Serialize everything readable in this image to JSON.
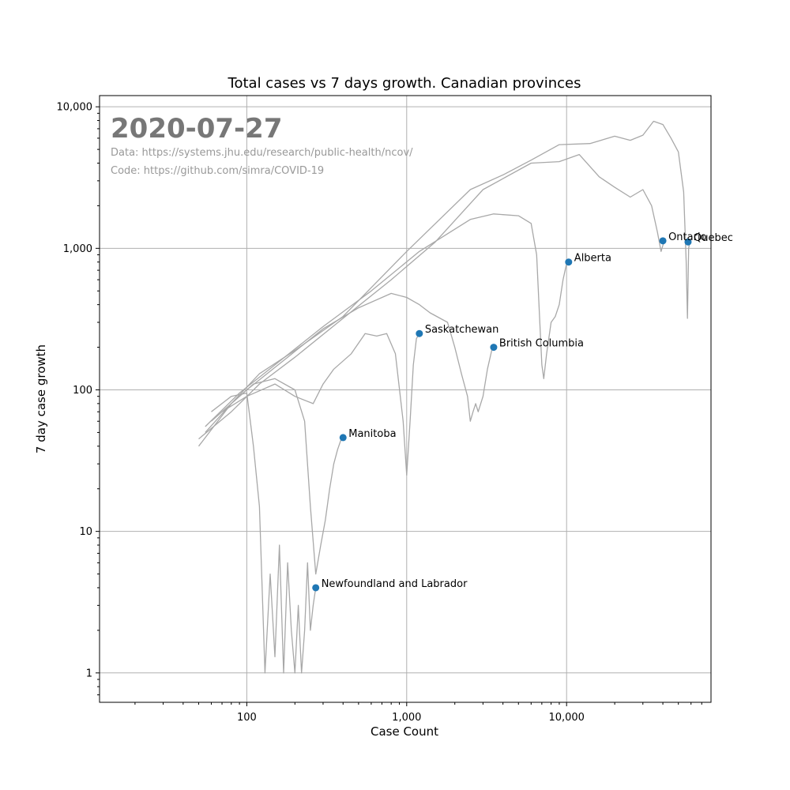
{
  "chart_data": {
    "type": "line",
    "title": "Total cases vs 7 days growth. Canadian provinces",
    "xlabel": "Case Count",
    "ylabel": "7 day case growth",
    "xscale": "log",
    "yscale": "log",
    "xlim": [
      12,
      80000
    ],
    "ylim": [
      0.62,
      12000
    ],
    "grid": true,
    "x_ticks": [
      {
        "value": 100,
        "label": "100"
      },
      {
        "value": 1000,
        "label": "1,000"
      },
      {
        "value": 10000,
        "label": "10,000"
      }
    ],
    "y_ticks": [
      {
        "value": 1,
        "label": "1"
      },
      {
        "value": 10,
        "label": "10"
      },
      {
        "value": 100,
        "label": "100"
      },
      {
        "value": 1000,
        "label": "1,000"
      },
      {
        "value": 10000,
        "label": "10,000"
      }
    ],
    "annotations": {
      "date": "2020-07-27",
      "data_source": "Data: https://systems.jhu.edu/research/public-health/ncov/",
      "code_source": "Code: https://github.com/simra/COVID-19"
    },
    "series": [
      {
        "name": "Quebec",
        "color": "#a8a8a8",
        "x": [
          50,
          80,
          120,
          200,
          400,
          1000,
          2500,
          4000,
          6000,
          9000,
          14000,
          20000,
          25000,
          30000,
          35000,
          40000,
          45000,
          50000,
          54000,
          56000,
          57000,
          58000,
          59000
        ],
        "y": [
          40,
          80,
          130,
          190,
          330,
          950,
          2600,
          3300,
          4200,
          5400,
          5500,
          6200,
          5800,
          6300,
          7900,
          7500,
          6000,
          4800,
          2500,
          800,
          320,
          1000,
          1110
        ]
      },
      {
        "name": "Ontario",
        "color": "#a8a8a8",
        "x": [
          50,
          80,
          120,
          200,
          400,
          800,
          1500,
          3000,
          6000,
          9000,
          12000,
          16000,
          20000,
          25000,
          30000,
          34000,
          37000,
          39000,
          40000,
          41000
        ],
        "y": [
          45,
          70,
          110,
          170,
          320,
          600,
          1100,
          2600,
          4000,
          4100,
          4600,
          3200,
          2700,
          2300,
          2600,
          2000,
          1300,
          950,
          1050,
          1130
        ]
      },
      {
        "name": "Alberta",
        "color": "#a8a8a8",
        "x": [
          55,
          90,
          150,
          300,
          600,
          1200,
          2500,
          3500,
          5000,
          6000,
          6500,
          6800,
          7000,
          7200,
          7500,
          8000,
          8500,
          9000,
          9500,
          10000,
          10300
        ],
        "y": [
          55,
          95,
          150,
          280,
          500,
          950,
          1600,
          1750,
          1700,
          1500,
          900,
          300,
          150,
          120,
          180,
          300,
          330,
          400,
          600,
          780,
          800
        ]
      },
      {
        "name": "British Columbia",
        "color": "#a8a8a8",
        "x": [
          60,
          100,
          180,
          300,
          500,
          800,
          1000,
          1200,
          1400,
          1800,
          2000,
          2200,
          2400,
          2500,
          2600,
          2700,
          2800,
          3000,
          3200,
          3400,
          3500
        ],
        "y": [
          60,
          100,
          170,
          270,
          380,
          480,
          450,
          400,
          350,
          300,
          200,
          130,
          90,
          60,
          70,
          80,
          70,
          90,
          140,
          190,
          200
        ]
      },
      {
        "name": "Saskatchewan",
        "color": "#a8a8a8",
        "x": [
          70,
          100,
          150,
          200,
          260,
          300,
          350,
          450,
          550,
          650,
          750,
          850,
          950,
          1000,
          1050,
          1100,
          1150,
          1200
        ],
        "y": [
          70,
          90,
          110,
          90,
          80,
          110,
          140,
          180,
          250,
          240,
          250,
          180,
          60,
          25,
          60,
          150,
          230,
          250
        ]
      },
      {
        "name": "Manitoba",
        "color": "#a8a8a8",
        "x": [
          55,
          80,
          110,
          150,
          200,
          230,
          250,
          270,
          290,
          310,
          330,
          350,
          370,
          390,
          400
        ],
        "y": [
          50,
          80,
          110,
          120,
          100,
          60,
          15,
          5,
          8,
          12,
          20,
          30,
          38,
          45,
          46
        ]
      },
      {
        "name": "Newfoundland and Labrador",
        "color": "#a8a8a8",
        "x": [
          60,
          80,
          100,
          110,
          120,
          130,
          140,
          150,
          160,
          170,
          180,
          190,
          200,
          210,
          220,
          230,
          240,
          250,
          260,
          270
        ],
        "y": [
          70,
          90,
          95,
          40,
          15,
          1,
          5,
          1.3,
          8,
          1,
          6,
          2,
          1,
          3,
          1,
          2,
          6,
          2,
          3,
          4
        ]
      }
    ],
    "points": [
      {
        "name": "Quebec",
        "x": 57500,
        "y": 1110
      },
      {
        "name": "Ontario",
        "x": 40000,
        "y": 1130
      },
      {
        "name": "Alberta",
        "x": 10300,
        "y": 800
      },
      {
        "name": "Saskatchewan",
        "x": 1200,
        "y": 250
      },
      {
        "name": "British Columbia",
        "x": 3500,
        "y": 200
      },
      {
        "name": "Manitoba",
        "x": 400,
        "y": 46
      },
      {
        "name": "Newfoundland and Labrador",
        "x": 270,
        "y": 4
      }
    ]
  }
}
